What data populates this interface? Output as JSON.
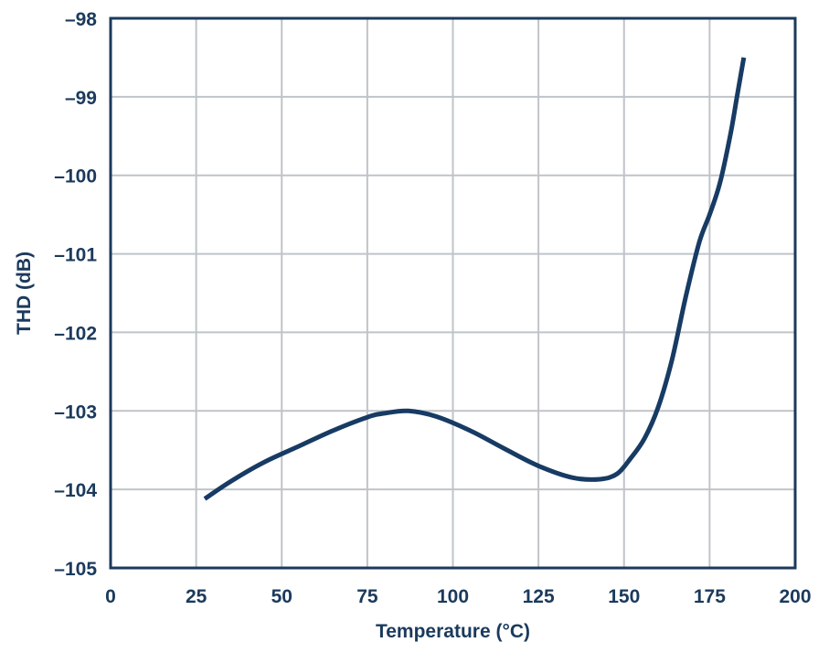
{
  "chart_data": {
    "type": "line",
    "title": "",
    "xlabel": "Temperature (°C)",
    "ylabel": "THD (dB)",
    "xlim": [
      0,
      200
    ],
    "ylim": [
      -105,
      -98
    ],
    "xticks": [
      0,
      25,
      50,
      75,
      100,
      125,
      150,
      175,
      200
    ],
    "yticks": [
      -98,
      -99,
      -100,
      -101,
      -102,
      -103,
      -104,
      -105
    ],
    "xtick_labels": [
      "0",
      "25",
      "50",
      "75",
      "100",
      "125",
      "150",
      "175",
      "200"
    ],
    "ytick_labels": [
      "–98",
      "–99",
      "–100",
      "–101",
      "–102",
      "–103",
      "–104",
      "–105"
    ],
    "grid": true,
    "series": [
      {
        "name": "THD",
        "x": [
          27.5,
          35,
          45,
          55,
          65,
          75,
          80,
          87,
          95,
          105,
          115,
          125,
          135,
          143,
          148,
          152,
          156,
          160,
          164,
          168,
          172,
          175,
          178,
          181,
          183,
          185
        ],
        "y": [
          -104.12,
          -103.9,
          -103.65,
          -103.45,
          -103.25,
          -103.08,
          -103.03,
          -103.0,
          -103.07,
          -103.25,
          -103.48,
          -103.7,
          -103.85,
          -103.87,
          -103.8,
          -103.6,
          -103.35,
          -102.95,
          -102.35,
          -101.55,
          -100.85,
          -100.5,
          -100.1,
          -99.5,
          -99.0,
          -98.5
        ]
      }
    ],
    "colors": {
      "axis": "#1b3a5c",
      "grid": "#bfc4c9",
      "line": "#173b63",
      "text": "#1b3a5c"
    }
  }
}
